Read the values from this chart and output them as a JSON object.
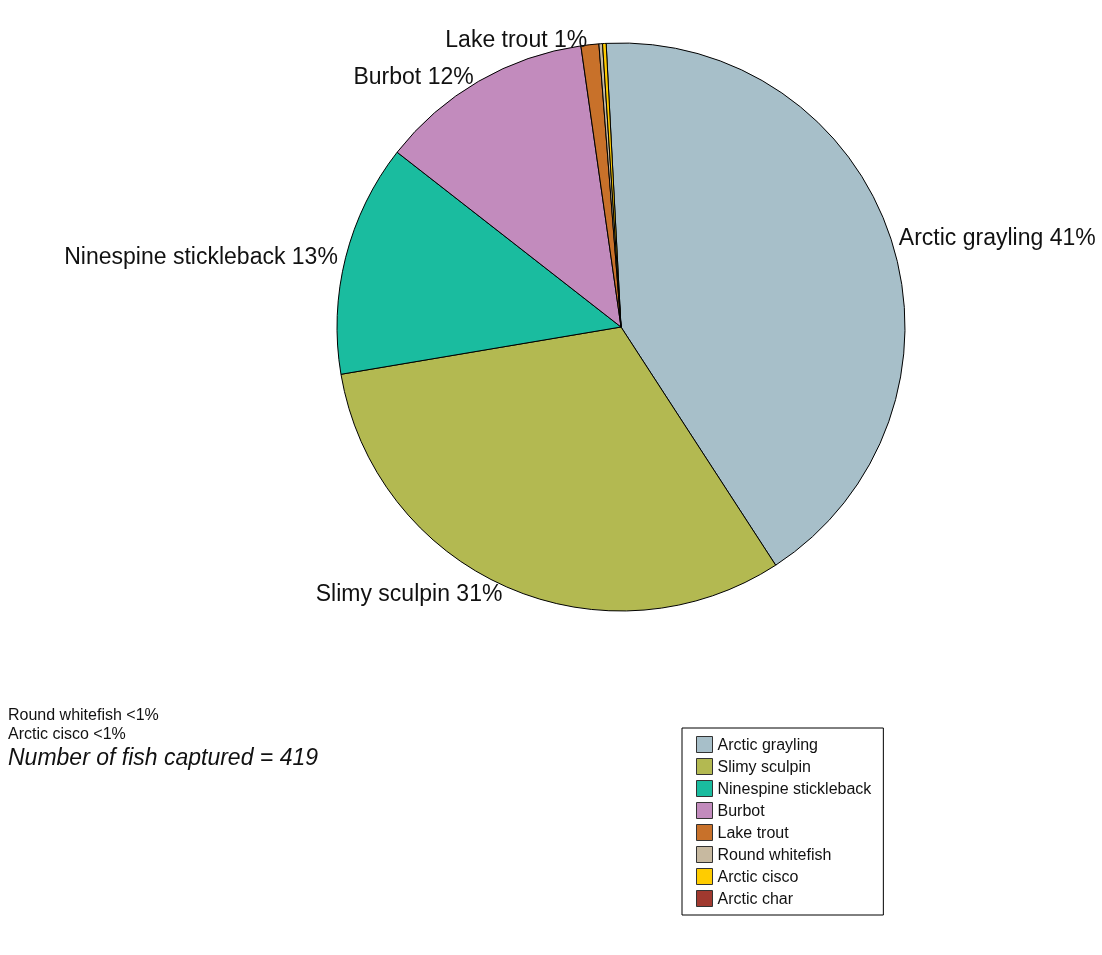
{
  "chart_data": {
    "type": "pie",
    "categories": [
      "Arctic grayling",
      "Slimy sculpin",
      "Ninespine stickleback",
      "Burbot",
      "Lake trout",
      "Round whitefish",
      "Arctic cisco",
      "Arctic char"
    ],
    "values": [
      41,
      31,
      13,
      12,
      1,
      0.2,
      0.2,
      null
    ],
    "colors": [
      "#a7bfc9",
      "#b3b951",
      "#1abc9f",
      "#c28bbd",
      "#c8712a",
      "#c7b9a0",
      "#ffcc00",
      "#a0392f"
    ],
    "value_labels": [
      "Arctic grayling 41%",
      "Slimy sculpin 31%",
      "Ninespine stickleback 13%",
      "Burbot 12%",
      "Lake trout 1%",
      null,
      null,
      null
    ],
    "annotations": [
      "Round whitefish <1%",
      "Arctic cisco <1%",
      "Number of fish captured = 419"
    ],
    "legend": "bottom right"
  }
}
